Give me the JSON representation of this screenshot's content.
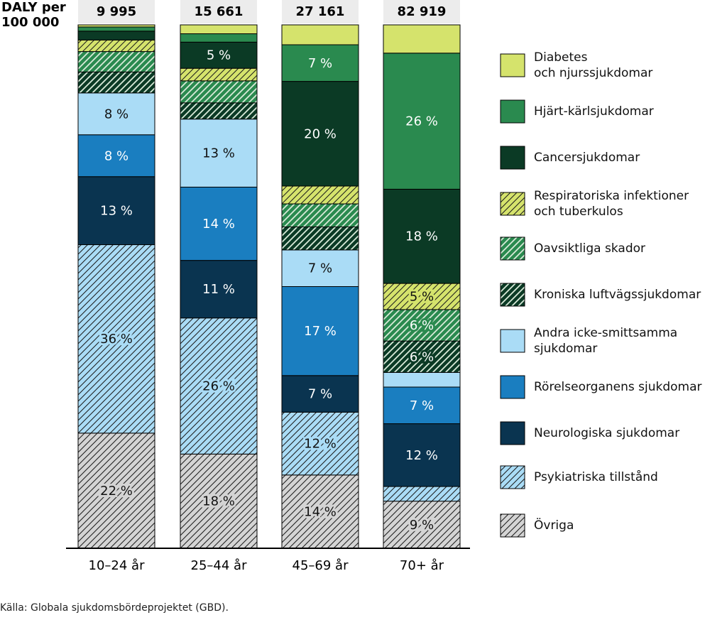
{
  "chart_data": {
    "type": "stacked-bar-percent",
    "y_label": "DALY per\n100 000",
    "categories": [
      "10–24 år",
      "25–44 år",
      "45–69 år",
      "70+ år"
    ],
    "totals": [
      {
        "value": 9995,
        "label": "9 995"
      },
      {
        "value": 15661,
        "label": "15 661"
      },
      {
        "value": 27161,
        "label": "27 161"
      },
      {
        "value": 82919,
        "label": "82 919"
      }
    ],
    "ylim": [
      0,
      100
    ],
    "series": [
      {
        "name": "Diabetes\noch njurssjukdomar",
        "color": "#d5e36c",
        "hatch": false,
        "values": [
          0.4,
          1.7,
          3.8,
          5.4
        ],
        "value_labels": [
          null,
          null,
          null,
          null
        ]
      },
      {
        "name": "Hjärt-kärlsjukdomar",
        "color": "#2a8a4f",
        "hatch": false,
        "values": [
          0.8,
          1.6,
          7,
          26
        ],
        "value_labels": [
          null,
          null,
          "7 %",
          "26 %"
        ]
      },
      {
        "name": "Cancersjukdomar",
        "color": "#0b3a25",
        "hatch": false,
        "values": [
          1.7,
          5,
          20,
          18
        ],
        "value_labels": [
          null,
          "5 %",
          "20 %",
          "18 %"
        ]
      },
      {
        "name": "Respiratoriska infektioner\noch tuberkulos",
        "color": "#d5e36c",
        "hatch": true,
        "values": [
          2.2,
          2.4,
          3.4,
          5
        ],
        "value_labels": [
          null,
          null,
          null,
          "5 %"
        ]
      },
      {
        "name": "Oavsiktliga skador",
        "color": "#2a8a4f",
        "hatch": true,
        "values": [
          3.9,
          4.2,
          4.4,
          6
        ],
        "value_labels": [
          null,
          null,
          null,
          "6 %"
        ]
      },
      {
        "name": "Kroniska luftvägssjukdomar",
        "color": "#0b3a25",
        "hatch": true,
        "values": [
          4,
          3.1,
          4.4,
          6
        ],
        "value_labels": [
          null,
          null,
          null,
          "6 %"
        ]
      },
      {
        "name": "Andra icke-smittsamma\nsjukdomar",
        "color": "#aadcf6",
        "hatch": false,
        "values": [
          8,
          13,
          7,
          2.8
        ],
        "value_labels": [
          "8 %",
          "13 %",
          "7 %",
          null
        ]
      },
      {
        "name": "Rörelseorganens sjukdomar",
        "color": "#1a7ec0",
        "hatch": false,
        "values": [
          8,
          14,
          17,
          7
        ],
        "value_labels": [
          "8 %",
          "14 %",
          "17 %",
          "7 %"
        ]
      },
      {
        "name": "Neurologiska sjukdomar",
        "color": "#0a3450",
        "hatch": false,
        "values": [
          13,
          11,
          7,
          12
        ],
        "value_labels": [
          "13 %",
          "11 %",
          "7 %",
          "12 %"
        ]
      },
      {
        "name": "Psykiatriska tillstånd",
        "color": "#aadcf6",
        "hatch": true,
        "values": [
          36,
          26,
          12,
          2.8
        ],
        "value_labels": [
          "36 %",
          "26 %",
          "12 %",
          null
        ]
      },
      {
        "name": "Övriga",
        "color": "#d4d4d4",
        "hatch": true,
        "values": [
          22,
          18,
          14,
          9
        ],
        "value_labels": [
          "22 %",
          "18 %",
          "14 %",
          "9 %"
        ]
      }
    ],
    "source": "Källa: Globala sjukdomsbördeprojektet (GBD)."
  }
}
